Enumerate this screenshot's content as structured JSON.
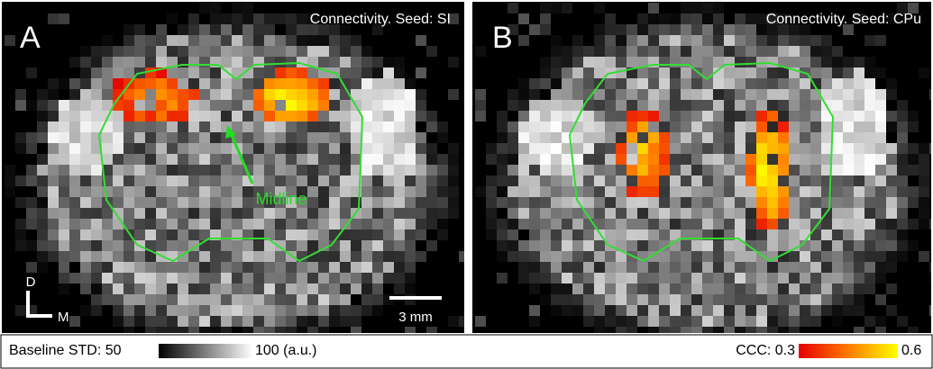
{
  "panels": [
    {
      "label": "A",
      "title": "Connectivity.  Seed: SI",
      "annotation": "Midline",
      "scale_bar": "3 mm",
      "orientation": {
        "dorsal": "D",
        "medial": "M"
      }
    },
    {
      "label": "B",
      "title": "Connectivity.  Seed: CPu"
    }
  ],
  "footer": {
    "baseline": {
      "prefix": "Baseline STD: 50",
      "suffix": "100 (a.u.)"
    },
    "ccc": {
      "prefix": "CCC: 0.3",
      "suffix": "0.6"
    }
  }
}
